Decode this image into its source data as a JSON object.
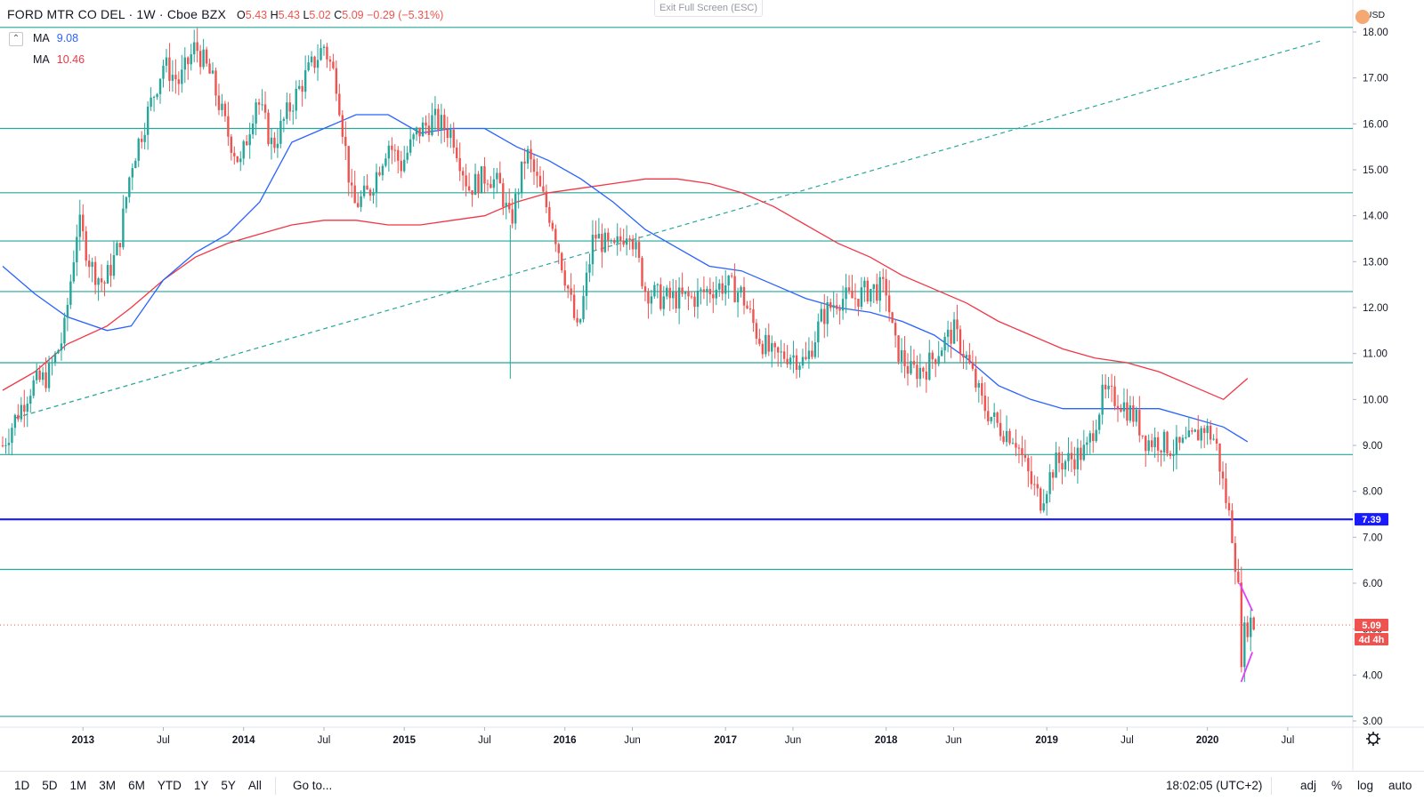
{
  "header": {
    "symbol": "FORD MTR CO DEL · 1W · Cboe BZX",
    "open_label": "O",
    "open": "5.43",
    "high_label": "H",
    "high": "5.43",
    "low_label": "L",
    "low": "5.02",
    "close_label": "C",
    "close": "5.09",
    "change": "−0.29 (−5.31%)",
    "exit_fullscreen": "Exit Full Screen (ESC)",
    "collapse_icon": "chevron-up-icon"
  },
  "indicators": [
    {
      "label": "MA",
      "value": "9.08",
      "color": "#2962ff"
    },
    {
      "label": "MA",
      "value": "10.46",
      "color": "#f23645"
    }
  ],
  "currency": "USD",
  "badges": {
    "level": "7.39",
    "price": "5.09",
    "countdown": "4d 4h"
  },
  "bottom": {
    "ranges": [
      "1D",
      "5D",
      "1M",
      "3M",
      "6M",
      "YTD",
      "1Y",
      "5Y",
      "All"
    ],
    "goto": "Go to...",
    "time": "18:02:05 (UTC+2)",
    "options": [
      "adj",
      "%",
      "log",
      "auto"
    ]
  },
  "chart_data": {
    "type": "candlestick",
    "y_axis": {
      "min": 3.0,
      "max": 18.0,
      "ticks": [
        "3.00",
        "4.00",
        "5.00",
        "6.00",
        "7.00",
        "8.00",
        "9.00",
        "10.00",
        "11.00",
        "12.00",
        "13.00",
        "14.00",
        "15.00",
        "16.00",
        "17.00",
        "18.00"
      ]
    },
    "x_axis": {
      "ticks": [
        {
          "label": "2013",
          "t": 2013.0
        },
        {
          "label": "Jul",
          "t": 2013.5
        },
        {
          "label": "2014",
          "t": 2014.0
        },
        {
          "label": "Jul",
          "t": 2014.5
        },
        {
          "label": "2015",
          "t": 2015.0
        },
        {
          "label": "Jul",
          "t": 2015.5
        },
        {
          "label": "2016",
          "t": 2016.0
        },
        {
          "label": "Jun",
          "t": 2016.42
        },
        {
          "label": "2017",
          "t": 2017.0
        },
        {
          "label": "Jun",
          "t": 2017.42
        },
        {
          "label": "2018",
          "t": 2018.0
        },
        {
          "label": "Jun",
          "t": 2018.42
        },
        {
          "label": "2019",
          "t": 2019.0
        },
        {
          "label": "Jul",
          "t": 2019.5
        },
        {
          "label": "2020",
          "t": 2020.0
        },
        {
          "label": "Jul",
          "t": 2020.5
        }
      ],
      "range": [
        2012.5,
        2020.7
      ]
    },
    "colors": {
      "up": "#26a69a",
      "down": "#ef5350",
      "level_lines": "#26a69a",
      "key_level": "#1a1aff",
      "ma_fast": "#2962ff",
      "ma_slow": "#f23645",
      "trend": "#26a69a",
      "wedge": "#e040fb"
    },
    "price_path": [
      [
        2012.5,
        9.0
      ],
      [
        2012.58,
        9.6
      ],
      [
        2012.68,
        10.3
      ],
      [
        2012.78,
        10.5
      ],
      [
        2012.88,
        11.4
      ],
      [
        2012.97,
        13.9
      ],
      [
        2013.05,
        12.9
      ],
      [
        2013.13,
        12.5
      ],
      [
        2013.22,
        13.3
      ],
      [
        2013.3,
        15.1
      ],
      [
        2013.4,
        16.2
      ],
      [
        2013.5,
        17.3
      ],
      [
        2013.6,
        16.9
      ],
      [
        2013.7,
        17.7
      ],
      [
        2013.8,
        17.0
      ],
      [
        2013.9,
        15.8
      ],
      [
        2013.98,
        15.1
      ],
      [
        2014.08,
        16.6
      ],
      [
        2014.18,
        15.5
      ],
      [
        2014.28,
        16.3
      ],
      [
        2014.38,
        17.0
      ],
      [
        2014.5,
        17.7
      ],
      [
        2014.58,
        16.9
      ],
      [
        2014.68,
        14.2
      ],
      [
        2014.78,
        14.5
      ],
      [
        2014.9,
        15.6
      ],
      [
        2014.98,
        15.1
      ],
      [
        2015.08,
        15.8
      ],
      [
        2015.18,
        16.1
      ],
      [
        2015.3,
        15.8
      ],
      [
        2015.4,
        14.6
      ],
      [
        2015.52,
        14.9
      ],
      [
        2015.6,
        14.6
      ],
      [
        2015.66,
        13.8
      ],
      [
        2015.76,
        15.4
      ],
      [
        2015.85,
        14.5
      ],
      [
        2015.92,
        13.9
      ],
      [
        2016.02,
        12.4
      ],
      [
        2016.08,
        11.4
      ],
      [
        2016.18,
        13.6
      ],
      [
        2016.3,
        13.2
      ],
      [
        2016.4,
        13.8
      ],
      [
        2016.5,
        12.4
      ],
      [
        2016.6,
        12.2
      ],
      [
        2016.7,
        12.2
      ],
      [
        2016.8,
        12.2
      ],
      [
        2016.9,
        12.4
      ],
      [
        2017.0,
        12.5
      ],
      [
        2017.1,
        12.3
      ],
      [
        2017.2,
        11.4
      ],
      [
        2017.3,
        10.9
      ],
      [
        2017.4,
        11.0
      ],
      [
        2017.5,
        10.8
      ],
      [
        2017.6,
        11.8
      ],
      [
        2017.7,
        12.2
      ],
      [
        2017.8,
        12.2
      ],
      [
        2017.9,
        12.4
      ],
      [
        2018.0,
        12.4
      ],
      [
        2018.05,
        11.2
      ],
      [
        2018.15,
        10.6
      ],
      [
        2018.25,
        10.7
      ],
      [
        2018.35,
        11.2
      ],
      [
        2018.42,
        11.5
      ],
      [
        2018.5,
        10.9
      ],
      [
        2018.6,
        9.9
      ],
      [
        2018.7,
        9.4
      ],
      [
        2018.8,
        9.2
      ],
      [
        2018.9,
        8.2
      ],
      [
        2018.96,
        7.8
      ],
      [
        2019.05,
        8.6
      ],
      [
        2019.15,
        8.7
      ],
      [
        2019.25,
        8.9
      ],
      [
        2019.35,
        10.1
      ],
      [
        2019.45,
        10.0
      ],
      [
        2019.55,
        9.6
      ],
      [
        2019.62,
        9.1
      ],
      [
        2019.7,
        9.1
      ],
      [
        2019.8,
        8.9
      ],
      [
        2019.9,
        9.1
      ],
      [
        2019.98,
        9.4
      ],
      [
        2020.05,
        9.1
      ],
      [
        2020.1,
        8.1
      ],
      [
        2020.15,
        7.2
      ],
      [
        2020.19,
        6.0
      ],
      [
        2020.21,
        4.4
      ],
      [
        2020.23,
        4.9
      ],
      [
        2020.26,
        5.2
      ],
      [
        2020.29,
        5.09
      ]
    ],
    "ma_fast_path": [
      [
        2012.5,
        12.9
      ],
      [
        2012.7,
        12.3
      ],
      [
        2012.9,
        11.8
      ],
      [
        2013.15,
        11.5
      ],
      [
        2013.3,
        11.6
      ],
      [
        2013.5,
        12.6
      ],
      [
        2013.7,
        13.2
      ],
      [
        2013.9,
        13.6
      ],
      [
        2014.1,
        14.3
      ],
      [
        2014.3,
        15.6
      ],
      [
        2014.5,
        15.9
      ],
      [
        2014.7,
        16.2
      ],
      [
        2014.9,
        16.2
      ],
      [
        2015.1,
        15.8
      ],
      [
        2015.3,
        15.9
      ],
      [
        2015.5,
        15.9
      ],
      [
        2015.7,
        15.5
      ],
      [
        2015.9,
        15.2
      ],
      [
        2016.1,
        14.8
      ],
      [
        2016.3,
        14.3
      ],
      [
        2016.5,
        13.7
      ],
      [
        2016.7,
        13.3
      ],
      [
        2016.9,
        12.9
      ],
      [
        2017.1,
        12.8
      ],
      [
        2017.3,
        12.5
      ],
      [
        2017.5,
        12.2
      ],
      [
        2017.7,
        12.0
      ],
      [
        2017.9,
        11.9
      ],
      [
        2018.1,
        11.7
      ],
      [
        2018.3,
        11.4
      ],
      [
        2018.5,
        10.9
      ],
      [
        2018.7,
        10.3
      ],
      [
        2018.9,
        10.0
      ],
      [
        2019.1,
        9.8
      ],
      [
        2019.3,
        9.8
      ],
      [
        2019.5,
        9.8
      ],
      [
        2019.7,
        9.8
      ],
      [
        2019.9,
        9.6
      ],
      [
        2020.1,
        9.4
      ],
      [
        2020.25,
        9.08
      ]
    ],
    "ma_slow_path": [
      [
        2012.5,
        10.2
      ],
      [
        2012.7,
        10.6
      ],
      [
        2012.9,
        11.2
      ],
      [
        2013.15,
        11.6
      ],
      [
        2013.3,
        12.0
      ],
      [
        2013.5,
        12.6
      ],
      [
        2013.7,
        13.1
      ],
      [
        2013.9,
        13.4
      ],
      [
        2014.1,
        13.6
      ],
      [
        2014.3,
        13.8
      ],
      [
        2014.5,
        13.9
      ],
      [
        2014.7,
        13.9
      ],
      [
        2014.9,
        13.8
      ],
      [
        2015.1,
        13.8
      ],
      [
        2015.3,
        13.9
      ],
      [
        2015.5,
        14.0
      ],
      [
        2015.7,
        14.3
      ],
      [
        2015.9,
        14.5
      ],
      [
        2016.1,
        14.6
      ],
      [
        2016.3,
        14.7
      ],
      [
        2016.5,
        14.8
      ],
      [
        2016.7,
        14.8
      ],
      [
        2016.9,
        14.7
      ],
      [
        2017.1,
        14.5
      ],
      [
        2017.3,
        14.2
      ],
      [
        2017.5,
        13.8
      ],
      [
        2017.7,
        13.4
      ],
      [
        2017.9,
        13.1
      ],
      [
        2018.1,
        12.7
      ],
      [
        2018.3,
        12.4
      ],
      [
        2018.5,
        12.1
      ],
      [
        2018.7,
        11.7
      ],
      [
        2018.9,
        11.4
      ],
      [
        2019.1,
        11.1
      ],
      [
        2019.3,
        10.9
      ],
      [
        2019.5,
        10.8
      ],
      [
        2019.7,
        10.6
      ],
      [
        2019.9,
        10.3
      ],
      [
        2020.1,
        10.0
      ],
      [
        2020.25,
        10.46
      ]
    ],
    "horizontal_levels": [
      18.1,
      15.9,
      14.5,
      13.45,
      12.35,
      10.8,
      8.8,
      6.3,
      3.1
    ],
    "key_level": 7.39,
    "trendline": [
      [
        2012.58,
        9.6
      ],
      [
        2020.7,
        17.8
      ]
    ],
    "wedge": [
      [
        [
          2020.2,
          6.0
        ],
        [
          2020.28,
          5.4
        ]
      ],
      [
        [
          2020.21,
          3.85
        ],
        [
          2020.28,
          4.5
        ]
      ]
    ]
  }
}
